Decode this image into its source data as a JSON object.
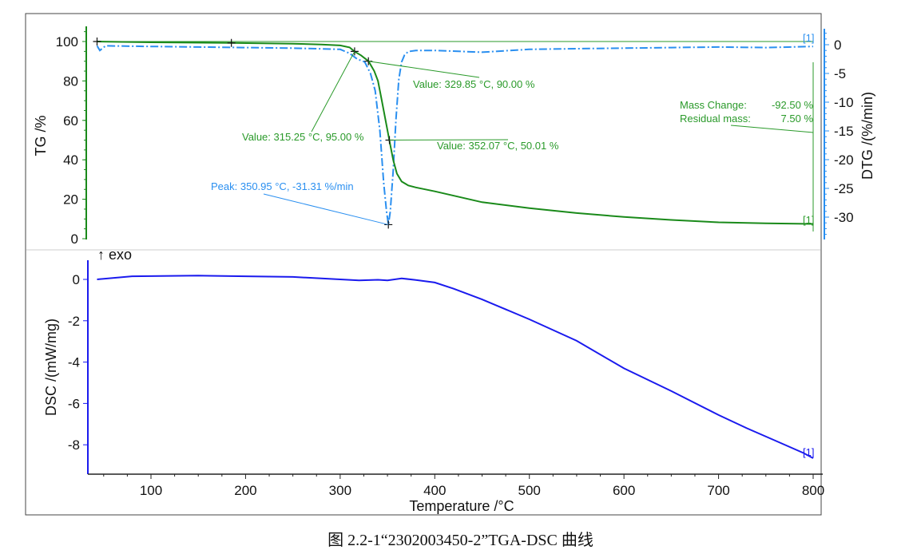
{
  "caption": "图 2.2-1“2302003450-2”TGA-DSC 曲线",
  "colors": {
    "tg": "#1a8a1a",
    "dtg": "#2a8ff0",
    "dsc": "#1a1aee",
    "annotation_tg": "#2a9a2a"
  },
  "chart_data": [
    {
      "type": "line",
      "panel": "top",
      "xlabel": "Temperature /°C",
      "xlim": [
        40,
        805
      ],
      "xticks": [
        100,
        200,
        300,
        400,
        500,
        600,
        700,
        800
      ],
      "ylabel": "TG /%",
      "ylim": [
        0,
        105
      ],
      "yticks": [
        0,
        20,
        40,
        60,
        80,
        100
      ],
      "y2label": "DTG /(%/min)",
      "y2lim": [
        -33,
        2
      ],
      "y2ticks": [
        0,
        -5,
        -10,
        -15,
        -20,
        -25,
        -30
      ],
      "series": [
        {
          "key": "tg",
          "axis": "y",
          "style": "solid",
          "x": [
            43,
            100,
            185,
            250,
            280,
            300,
            310,
            315,
            322,
            330,
            336,
            340,
            344,
            348,
            352,
            356,
            360,
            365,
            372,
            380,
            400,
            450,
            500,
            550,
            600,
            650,
            700,
            750,
            800
          ],
          "y": [
            100,
            99.6,
            99.3,
            98.9,
            98.5,
            98,
            97,
            95,
            93,
            90,
            85,
            80,
            70,
            60,
            50,
            40,
            33,
            29,
            27,
            26,
            24,
            18.5,
            15.5,
            13,
            11,
            9.5,
            8.3,
            7.8,
            7.5
          ]
        },
        {
          "key": "dtg",
          "axis": "y2",
          "style": "dashdot",
          "x": [
            43,
            46,
            52,
            100,
            150,
            200,
            250,
            300,
            310,
            318,
            326,
            332,
            337,
            342,
            346,
            349,
            351,
            353,
            356,
            359,
            362,
            365,
            368,
            372,
            380,
            400,
            450,
            500,
            550,
            600,
            650,
            700,
            750,
            800
          ],
          "y": [
            -0.2,
            -1,
            -0.2,
            -0.3,
            -0.4,
            -0.5,
            -0.6,
            -0.8,
            -1.5,
            -2.5,
            -3,
            -5,
            -8,
            -15,
            -24,
            -29,
            -31.31,
            -29,
            -22,
            -13,
            -6,
            -3,
            -1.8,
            -1.2,
            -1,
            -1,
            -1.3,
            -0.8,
            -0.7,
            -0.6,
            -0.5,
            -0.4,
            -0.5,
            -0.3
          ]
        }
      ],
      "markers": [
        {
          "axis": "y",
          "x": 43,
          "y": 100
        },
        {
          "axis": "y",
          "x": 185,
          "y": 99.3
        },
        {
          "axis": "y",
          "x": 315.25,
          "y": 95.0
        },
        {
          "axis": "y",
          "x": 329.85,
          "y": 90.0
        },
        {
          "axis": "y",
          "x": 352.07,
          "y": 50.01
        },
        {
          "axis": "y2",
          "x": 350.95,
          "y": -31.31
        }
      ],
      "annotations": {
        "v1": "Value: 315.25 °C, 95.00 %",
        "v2": "Value: 329.85 °C, 90.00 %",
        "v3": "Value: 352.07 °C, 50.01 %",
        "peak": "Peak: 350.95 °C, -31.31 %/min",
        "mass_change_label": "Mass Change:",
        "mass_change_value": "-92.50 %",
        "residual_label": "Residual mass:",
        "residual_value": "7.50 %",
        "curve_tag": "[1]"
      }
    },
    {
      "type": "line",
      "panel": "bottom",
      "xlabel": "Temperature /°C",
      "xlim": [
        40,
        805
      ],
      "ylabel": "DSC /(mW/mg)",
      "ylim": [
        -9.4,
        0.9
      ],
      "yticks": [
        0,
        -2,
        -4,
        -6,
        -8
      ],
      "exo_label": "↑ exo",
      "series": [
        {
          "key": "dsc",
          "axis": "y",
          "style": "solid",
          "x": [
            43,
            80,
            150,
            200,
            250,
            300,
            320,
            340,
            350,
            365,
            380,
            400,
            420,
            450,
            500,
            550,
            600,
            650,
            700,
            730,
            760,
            790,
            800
          ],
          "y": [
            0,
            0.15,
            0.18,
            0.15,
            0.12,
            0,
            -0.05,
            -0.02,
            -0.05,
            0.05,
            -0.03,
            -0.15,
            -0.45,
            -0.97,
            -1.93,
            -2.97,
            -4.3,
            -5.4,
            -6.56,
            -7.2,
            -7.8,
            -8.4,
            -8.65
          ]
        }
      ],
      "curve_tag": "[1]"
    }
  ]
}
